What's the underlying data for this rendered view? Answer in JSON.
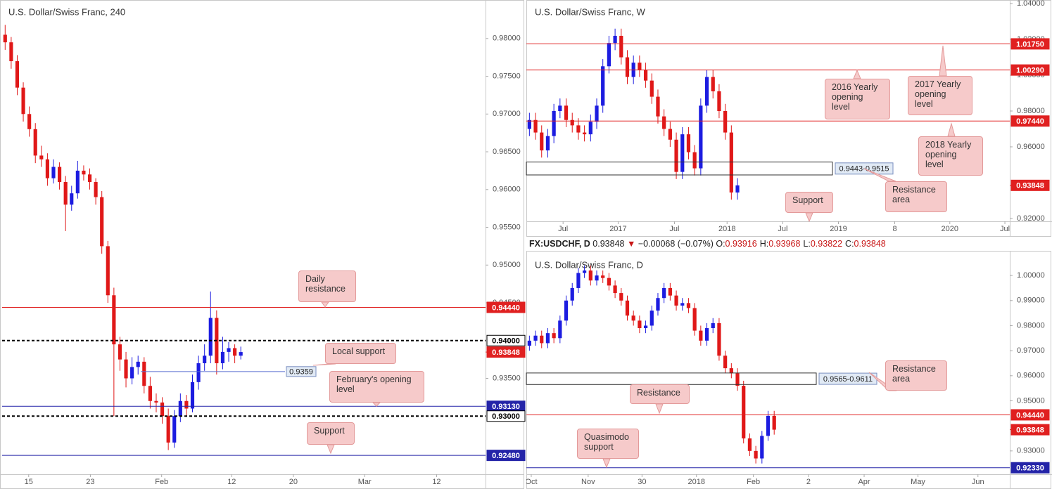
{
  "header": {
    "symbol": "FX:USDCHF, D",
    "last": "0.93848",
    "arrow": "▼",
    "change": "−0.00068 (−0.07%)",
    "ohlc": [
      {
        "key": "O:",
        "value": "0.93916"
      },
      {
        "key": "H:",
        "value": "0.93968"
      },
      {
        "key": "L:",
        "value": "0.93822"
      },
      {
        "key": "C:",
        "value": "0.93848"
      }
    ]
  },
  "chart_data": [
    {
      "type": "candlestick",
      "title": "U.S. Dollar/Swiss Franc, 240",
      "up_color": "#1c1ce0",
      "down_color": "#e01818",
      "grid": false,
      "xlim": [
        0,
        80
      ],
      "ylim": [
        0.9223,
        0.9851
      ],
      "xticks": [
        {
          "value": 4.4,
          "label": "15"
        },
        {
          "value": 14.6,
          "label": "23"
        },
        {
          "value": 26.4,
          "label": "Feb"
        },
        {
          "value": 38,
          "label": "12"
        },
        {
          "value": 48.2,
          "label": "20"
        },
        {
          "value": 60,
          "label": "Mar"
        },
        {
          "value": 71.9,
          "label": "12"
        }
      ],
      "yticks": [
        {
          "value": 0.935,
          "label": "0.93500"
        },
        {
          "value": 0.945,
          "label": "0.94500"
        },
        {
          "value": 0.95,
          "label": "0.95000"
        },
        {
          "value": 0.955,
          "label": "0.95500"
        },
        {
          "value": 0.96,
          "label": "0.96000"
        },
        {
          "value": 0.965,
          "label": "0.96500"
        },
        {
          "value": 0.97,
          "label": "0.97000"
        },
        {
          "value": 0.975,
          "label": "0.97500"
        },
        {
          "value": 0.98,
          "label": "0.98000"
        }
      ],
      "open": [
        0.9805,
        0.9795,
        0.977,
        0.9735,
        0.97,
        0.968,
        0.9645,
        0.964,
        0.9615,
        0.963,
        0.961,
        0.958,
        0.9595,
        0.9625,
        0.962,
        0.961,
        0.959,
        0.9525,
        0.946,
        0.9395,
        0.9375,
        0.935,
        0.9365,
        0.9372,
        0.934,
        0.932,
        0.9318,
        0.93,
        0.9265,
        0.93,
        0.932,
        0.931,
        0.9345,
        0.937,
        0.938,
        0.943,
        0.937,
        0.9385,
        0.939,
        0.938
      ],
      "high": [
        0.9818,
        0.9802,
        0.9778,
        0.9742,
        0.971,
        0.9688,
        0.9658,
        0.9648,
        0.964,
        0.9636,
        0.9618,
        0.9605,
        0.9638,
        0.9632,
        0.9628,
        0.9615,
        0.9598,
        0.9532,
        0.947,
        0.9405,
        0.9385,
        0.9378,
        0.938,
        0.9378,
        0.9352,
        0.933,
        0.9325,
        0.931,
        0.9308,
        0.933,
        0.9328,
        0.9355,
        0.938,
        0.9395,
        0.9465,
        0.944,
        0.9405,
        0.9398,
        0.9395,
        0.9392
      ],
      "low": [
        0.9785,
        0.976,
        0.9725,
        0.969,
        0.967,
        0.9635,
        0.963,
        0.9605,
        0.9608,
        0.96,
        0.9545,
        0.9572,
        0.9588,
        0.9612,
        0.96,
        0.958,
        0.9515,
        0.945,
        0.93,
        0.936,
        0.9338,
        0.9342,
        0.9355,
        0.933,
        0.931,
        0.9305,
        0.929,
        0.9255,
        0.9258,
        0.9292,
        0.93,
        0.9305,
        0.9335,
        0.936,
        0.937,
        0.9355,
        0.9362,
        0.9372,
        0.937,
        0.9375
      ],
      "close": [
        0.9795,
        0.977,
        0.9735,
        0.97,
        0.968,
        0.9645,
        0.964,
        0.9615,
        0.963,
        0.961,
        0.958,
        0.9595,
        0.9625,
        0.962,
        0.961,
        0.959,
        0.9525,
        0.946,
        0.9395,
        0.9375,
        0.935,
        0.9365,
        0.9372,
        0.934,
        0.932,
        0.9318,
        0.93,
        0.9265,
        0.93,
        0.932,
        0.931,
        0.9345,
        0.937,
        0.938,
        0.943,
        0.937,
        0.9385,
        0.939,
        0.938,
        0.93848
      ],
      "levels": [
        {
          "value": 0.9444,
          "label": "0.94440",
          "color": "#e02020"
        },
        {
          "value": 0.94,
          "label": "0.94000",
          "color": "#000000",
          "dashed": true
        },
        {
          "value": 0.93848,
          "label": "0.93848",
          "color": "#e02020",
          "line": false
        },
        {
          "value": 0.9359,
          "label": "0.9359",
          "color": "#5a6fd0",
          "inline": true
        },
        {
          "value": 0.9313,
          "label": "0.93130",
          "color": "#2424a8"
        },
        {
          "value": 0.93,
          "label": "0.93000",
          "color": "#000000",
          "dashed": true
        },
        {
          "value": 0.9248,
          "label": "0.92480",
          "color": "#2424a8"
        }
      ],
      "zones": [],
      "annotations": [
        "Daily resistance",
        "Local support",
        "February's opening level",
        "Support"
      ]
    },
    {
      "type": "candlestick",
      "title": "U.S. Dollar/Swiss Franc, W",
      "up_color": "#1c1ce0",
      "down_color": "#e01818",
      "grid": false,
      "xlim": [
        0,
        79
      ],
      "ylim": [
        0.9184,
        1.042
      ],
      "xticks": [
        {
          "value": 6,
          "label": "Jul"
        },
        {
          "value": 15,
          "label": "2017"
        },
        {
          "value": 24.2,
          "label": "Jul"
        },
        {
          "value": 32.8,
          "label": "2018"
        },
        {
          "value": 41.9,
          "label": "Jul"
        },
        {
          "value": 51,
          "label": "2019"
        },
        {
          "value": 60.2,
          "label": "8"
        },
        {
          "value": 69.2,
          "label": "2020"
        },
        {
          "value": 78.2,
          "label": "Jul"
        }
      ],
      "yticks": [
        {
          "value": 1.04,
          "label": "1.04000"
        },
        {
          "value": 1.02,
          "label": "1.02000"
        },
        {
          "value": 1,
          "label": "1.00000"
        },
        {
          "value": 0.98,
          "label": "0.98000"
        },
        {
          "value": 0.96,
          "label": "0.96000"
        },
        {
          "value": 0.92,
          "label": "0.92000"
        }
      ],
      "open": [
        0.97,
        0.975,
        0.968,
        0.958,
        0.966,
        0.98,
        0.983,
        0.975,
        0.972,
        0.968,
        0.967,
        0.974,
        0.983,
        1.005,
        1.018,
        1.022,
        1.01,
        0.999,
        1.007,
        1.003,
        0.997,
        0.988,
        0.977,
        0.97,
        0.964,
        0.946,
        0.967,
        0.957,
        0.948,
        0.983,
        0.999,
        0.991,
        0.98,
        0.968,
        0.9345
      ],
      "high": [
        0.979,
        0.979,
        0.972,
        0.97,
        0.984,
        0.987,
        0.987,
        0.979,
        0.976,
        0.972,
        0.978,
        0.987,
        1.009,
        1.022,
        1.026,
        1.026,
        1.014,
        1.011,
        1.011,
        1.007,
        1.001,
        0.992,
        0.981,
        0.974,
        0.968,
        0.971,
        0.971,
        0.961,
        0.987,
        1.003,
        1.003,
        0.995,
        0.984,
        0.972,
        0.9425
      ],
      "low": [
        0.966,
        0.964,
        0.954,
        0.954,
        0.962,
        0.976,
        0.971,
        0.968,
        0.964,
        0.963,
        0.963,
        0.97,
        0.979,
        1.001,
        1.014,
        1.006,
        0.995,
        0.995,
        0.999,
        0.993,
        0.984,
        0.973,
        0.966,
        0.96,
        0.942,
        0.942,
        0.953,
        0.944,
        0.944,
        0.979,
        0.987,
        0.976,
        0.964,
        0.9305,
        0.9305
      ],
      "close": [
        0.975,
        0.968,
        0.958,
        0.966,
        0.98,
        0.983,
        0.975,
        0.972,
        0.968,
        0.967,
        0.974,
        0.983,
        1.005,
        1.018,
        1.022,
        1.01,
        0.999,
        1.007,
        1.003,
        0.997,
        0.988,
        0.977,
        0.97,
        0.964,
        0.946,
        0.967,
        0.957,
        0.948,
        0.983,
        0.999,
        0.991,
        0.98,
        0.968,
        0.9345,
        0.93848
      ],
      "levels": [
        {
          "value": 1.0175,
          "label": "1.01750",
          "color": "#e02020"
        },
        {
          "value": 1.0029,
          "label": "1.00290",
          "color": "#e02020"
        },
        {
          "value": 0.9744,
          "label": "0.97440",
          "color": "#e02020"
        },
        {
          "value": 0.93848,
          "label": "0.93848",
          "color": "#e02020",
          "line": false
        }
      ],
      "zones": [
        {
          "low": 0.9443,
          "high": 0.9515,
          "label": "0.9443-0.9515"
        }
      ],
      "annotations": [
        "2016 Yearly opening level",
        "2017 Yearly opening level",
        "2018 Yearly opening level",
        "Resistance area",
        "Support"
      ]
    },
    {
      "type": "candlestick",
      "title": "U.S. Dollar/Swiss Franc, D",
      "up_color": "#1c1ce0",
      "down_color": "#e01818",
      "grid": false,
      "xlim": [
        0,
        79
      ],
      "ylim": [
        0.9207,
        1.009
      ],
      "xticks": [
        {
          "value": 0.8,
          "label": "Oct"
        },
        {
          "value": 10.1,
          "label": "Nov"
        },
        {
          "value": 18.9,
          "label": "30"
        },
        {
          "value": 27.8,
          "label": "2018"
        },
        {
          "value": 37.1,
          "label": "Feb"
        },
        {
          "value": 46.1,
          "label": "2"
        },
        {
          "value": 55.2,
          "label": "Apr"
        },
        {
          "value": 64,
          "label": "May"
        },
        {
          "value": 73.8,
          "label": "Jun"
        }
      ],
      "yticks": [
        {
          "value": 1,
          "label": "1.00000"
        },
        {
          "value": 0.99,
          "label": "0.99000"
        },
        {
          "value": 0.98,
          "label": "0.98000"
        },
        {
          "value": 0.97,
          "label": "0.97000"
        },
        {
          "value": 0.96,
          "label": "0.96000"
        },
        {
          "value": 0.95,
          "label": "0.95000"
        },
        {
          "value": 0.93,
          "label": "0.93000"
        }
      ],
      "open": [
        0.972,
        0.974,
        0.976,
        0.973,
        0.977,
        0.975,
        0.982,
        0.99,
        0.995,
        1.001,
        1.002,
        0.998,
        1,
        0.999,
        0.996,
        0.993,
        0.99,
        0.984,
        0.982,
        0.979,
        0.98,
        0.986,
        0.991,
        0.995,
        0.992,
        0.988,
        0.989,
        0.987,
        0.978,
        0.974,
        0.979,
        0.981,
        0.968,
        0.963,
        0.961,
        0.956,
        0.935,
        0.93,
        0.927,
        0.936,
        0.944
      ],
      "high": [
        0.976,
        0.978,
        0.978,
        0.979,
        0.979,
        0.984,
        0.992,
        0.997,
        1.003,
        1.004,
        1.004,
        1.002,
        1.002,
        1.001,
        0.998,
        0.995,
        0.992,
        0.986,
        0.984,
        0.982,
        0.988,
        0.993,
        0.997,
        0.997,
        0.994,
        0.991,
        0.991,
        0.989,
        0.98,
        0.981,
        0.983,
        0.983,
        0.97,
        0.965,
        0.963,
        0.958,
        0.937,
        0.932,
        0.938,
        0.946,
        0.946
      ],
      "low": [
        0.97,
        0.972,
        0.971,
        0.971,
        0.973,
        0.973,
        0.98,
        0.988,
        0.993,
        0.999,
        0.996,
        0.996,
        0.997,
        0.994,
        0.991,
        0.988,
        0.982,
        0.98,
        0.977,
        0.977,
        0.978,
        0.984,
        0.989,
        0.99,
        0.986,
        0.986,
        0.985,
        0.976,
        0.972,
        0.972,
        0.977,
        0.966,
        0.961,
        0.959,
        0.954,
        0.933,
        0.928,
        0.925,
        0.925,
        0.934,
        0.9365
      ],
      "close": [
        0.974,
        0.976,
        0.973,
        0.977,
        0.975,
        0.982,
        0.99,
        0.995,
        1.001,
        1.002,
        0.998,
        1,
        0.999,
        0.996,
        0.993,
        0.99,
        0.984,
        0.982,
        0.979,
        0.98,
        0.986,
        0.991,
        0.995,
        0.992,
        0.988,
        0.989,
        0.987,
        0.978,
        0.974,
        0.979,
        0.981,
        0.968,
        0.963,
        0.961,
        0.956,
        0.935,
        0.93,
        0.927,
        0.936,
        0.944,
        0.93848
      ],
      "levels": [
        {
          "value": 0.9444,
          "label": "0.94440",
          "color": "#e02020"
        },
        {
          "value": 0.93848,
          "label": "0.93848",
          "color": "#e02020",
          "line": false
        },
        {
          "value": 0.9233,
          "label": "0.92330",
          "color": "#2424a8"
        }
      ],
      "zones": [
        {
          "low": 0.9565,
          "high": 0.9611,
          "label": "0.9565-0.9611"
        }
      ],
      "annotations": [
        "Resistance area",
        "Resistance",
        "Quasimodo support"
      ]
    }
  ]
}
